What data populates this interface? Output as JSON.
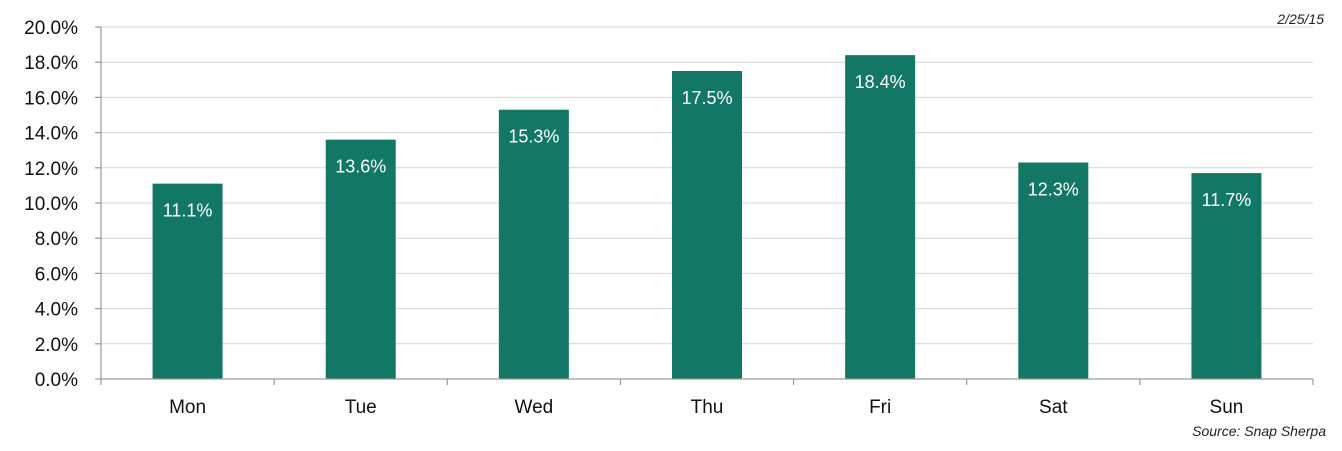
{
  "chart_data": {
    "type": "bar",
    "categories": [
      "Mon",
      "Tue",
      "Wed",
      "Thu",
      "Fri",
      "Sat",
      "Sun"
    ],
    "values": [
      11.1,
      13.6,
      15.3,
      17.5,
      18.4,
      12.3,
      11.7
    ],
    "data_labels": [
      "11.1%",
      "13.6%",
      "15.3%",
      "17.5%",
      "18.4%",
      "12.3%",
      "11.7%"
    ],
    "ylim": [
      0,
      20
    ],
    "yticks": [
      "0.0%",
      "2.0%",
      "4.0%",
      "6.0%",
      "8.0%",
      "10.0%",
      "12.0%",
      "14.0%",
      "16.0%",
      "18.0%",
      "20.0%"
    ],
    "grid": true,
    "bar_color": "#137766",
    "date": "2/25/15",
    "source": "Source: Snap Sherpa"
  }
}
